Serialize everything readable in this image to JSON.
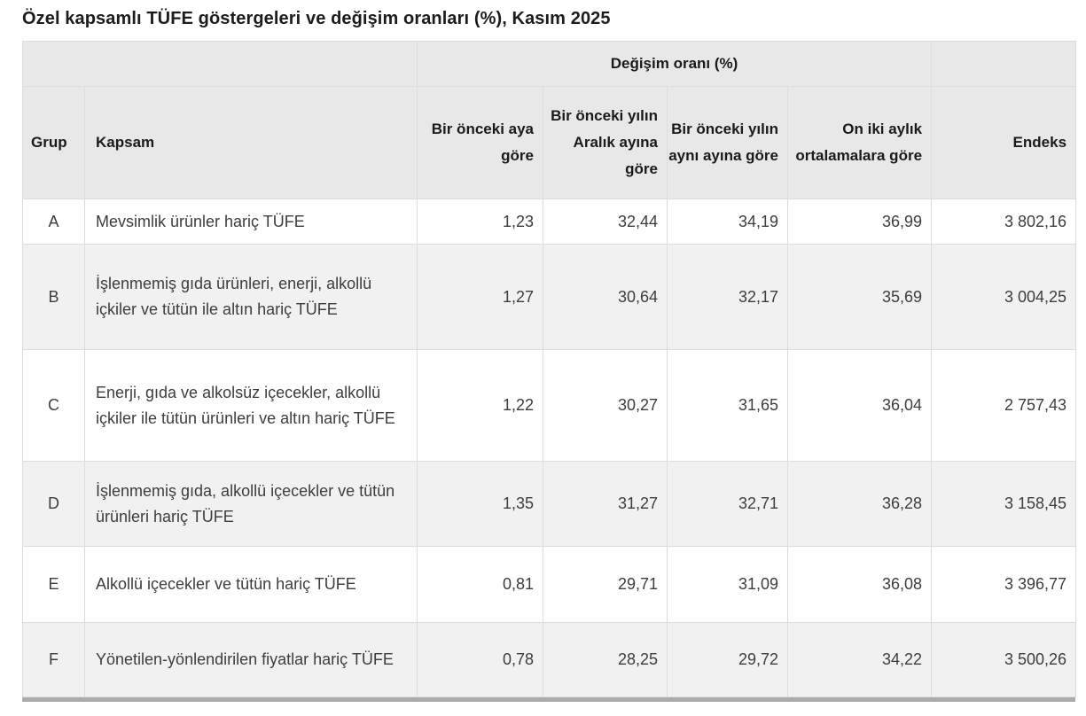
{
  "page": {
    "title": "Özel kapsamlı TÜFE göstergeleri ve değişim oranları (%), Kasım 2025"
  },
  "colors": {
    "header_bg": "#e8e8e8",
    "row_alt_bg": "#f1f1f2",
    "border": "#dddddd",
    "title_text": "#1c1c1c",
    "body_text": "#3d3d3d",
    "bottom_strip": "#ababab"
  },
  "table": {
    "group_header": "Değişim oranı (%)",
    "columns": {
      "grup": "Grup",
      "kapsam": "Kapsam",
      "monthly": "Bir önceki aya göre",
      "since_dec": "Bir önceki yılın Aralık ayına göre",
      "yoy": "Bir önceki yılın aynı ayına göre",
      "avg12": "On iki aylık ortalamalara göre",
      "endeks": "Endeks"
    },
    "rows": [
      {
        "grup": "A",
        "kapsam": "Mevsimlik ürünler hariç TÜFE",
        "monthly": "1,23",
        "since_dec": "32,44",
        "yoy": "34,19",
        "avg12": "36,99",
        "endeks": "3 802,16"
      },
      {
        "grup": "B",
        "kapsam": "İşlenmemiş gıda ürünleri, enerji, alkollü içkiler ve tütün ile altın hariç TÜFE",
        "monthly": "1,27",
        "since_dec": "30,64",
        "yoy": "32,17",
        "avg12": "35,69",
        "endeks": "3 004,25"
      },
      {
        "grup": "C",
        "kapsam": "Enerji, gıda ve alkolsüz içecekler, alkollü içkiler ile tütün ürünleri ve altın hariç TÜFE",
        "monthly": "1,22",
        "since_dec": "30,27",
        "yoy": "31,65",
        "avg12": "36,04",
        "endeks": "2 757,43"
      },
      {
        "grup": "D",
        "kapsam": "İşlenmemiş gıda, alkollü içecekler ve tütün ürünleri hariç TÜFE",
        "monthly": "1,35",
        "since_dec": "31,27",
        "yoy": "32,71",
        "avg12": "36,28",
        "endeks": "3 158,45"
      },
      {
        "grup": "E",
        "kapsam": "Alkollü içecekler ve tütün hariç TÜFE",
        "monthly": "0,81",
        "since_dec": "29,71",
        "yoy": "31,09",
        "avg12": "36,08",
        "endeks": "3 396,77"
      },
      {
        "grup": "F",
        "kapsam": "Yönetilen-yönlendirilen fiyatlar hariç TÜFE",
        "monthly": "0,78",
        "since_dec": "28,25",
        "yoy": "29,72",
        "avg12": "34,22",
        "endeks": "3 500,26"
      }
    ]
  },
  "chart_data": {
    "type": "table",
    "title": "Özel kapsamlı TÜFE göstergeleri ve değişim oranları (%), Kasım 2025",
    "columns": [
      "Grup",
      "Kapsam",
      "Bir önceki aya göre",
      "Bir önceki yılın Aralık ayına göre",
      "Bir önceki yılın aynı ayına göre",
      "On iki aylık ortalamalara göre",
      "Endeks"
    ],
    "rows": [
      [
        "A",
        "Mevsimlik ürünler hariç TÜFE",
        1.23,
        32.44,
        34.19,
        36.99,
        3802.16
      ],
      [
        "B",
        "İşlenmemiş gıda ürünleri, enerji, alkollü içkiler ve tütün ile altın hariç TÜFE",
        1.27,
        30.64,
        32.17,
        35.69,
        3004.25
      ],
      [
        "C",
        "Enerji, gıda ve alkolsüz içecekler, alkollü içkiler ile tütün ürünleri ve altın hariç TÜFE",
        1.22,
        30.27,
        31.65,
        36.04,
        2757.43
      ],
      [
        "D",
        "İşlenmemiş gıda, alkollü içecekler ve tütün ürünleri hariç TÜFE",
        1.35,
        31.27,
        32.71,
        36.28,
        3158.45
      ],
      [
        "E",
        "Alkollü içecekler ve tütün hariç TÜFE",
        0.81,
        29.71,
        31.09,
        36.08,
        3396.77
      ],
      [
        "F",
        "Yönetilen-yönlendirilen fiyatlar hariç TÜFE",
        0.78,
        28.25,
        29.72,
        34.22,
        3500.26
      ]
    ]
  }
}
